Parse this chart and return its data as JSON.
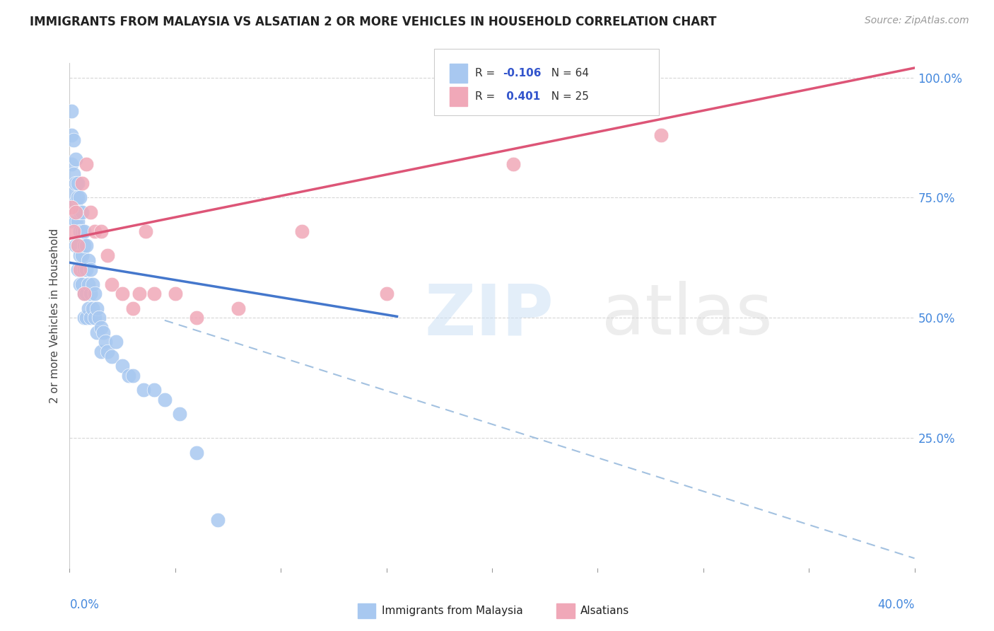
{
  "title": "IMMIGRANTS FROM MALAYSIA VS ALSATIAN 2 OR MORE VEHICLES IN HOUSEHOLD CORRELATION CHART",
  "source": "Source: ZipAtlas.com",
  "yaxis_label": "2 or more Vehicles in Household",
  "legend_label1": "Immigrants from Malaysia",
  "legend_label2": "Alsatians",
  "blue_color": "#a8c8f0",
  "pink_color": "#f0a8b8",
  "blue_line_color": "#4477cc",
  "pink_line_color": "#dd5577",
  "dash_line_color": "#99bbdd",
  "x_min": 0.0,
  "x_max": 0.4,
  "y_min": 0.0,
  "y_max": 1.0,
  "blue_scatter_x": [
    0.001,
    0.001,
    0.001,
    0.002,
    0.002,
    0.002,
    0.002,
    0.003,
    0.003,
    0.003,
    0.003,
    0.003,
    0.004,
    0.004,
    0.004,
    0.004,
    0.004,
    0.005,
    0.005,
    0.005,
    0.005,
    0.005,
    0.006,
    0.006,
    0.006,
    0.006,
    0.007,
    0.007,
    0.007,
    0.007,
    0.007,
    0.008,
    0.008,
    0.008,
    0.008,
    0.009,
    0.009,
    0.009,
    0.01,
    0.01,
    0.01,
    0.011,
    0.011,
    0.012,
    0.012,
    0.013,
    0.013,
    0.014,
    0.015,
    0.015,
    0.016,
    0.017,
    0.018,
    0.02,
    0.022,
    0.025,
    0.028,
    0.03,
    0.035,
    0.04,
    0.045,
    0.052,
    0.06,
    0.07
  ],
  "blue_scatter_y": [
    0.93,
    0.88,
    0.82,
    0.87,
    0.8,
    0.76,
    0.7,
    0.83,
    0.78,
    0.74,
    0.7,
    0.65,
    0.78,
    0.75,
    0.7,
    0.65,
    0.6,
    0.75,
    0.72,
    0.68,
    0.63,
    0.57,
    0.72,
    0.68,
    0.63,
    0.57,
    0.68,
    0.65,
    0.6,
    0.55,
    0.5,
    0.65,
    0.6,
    0.55,
    0.5,
    0.62,
    0.57,
    0.52,
    0.6,
    0.55,
    0.5,
    0.57,
    0.52,
    0.55,
    0.5,
    0.52,
    0.47,
    0.5,
    0.48,
    0.43,
    0.47,
    0.45,
    0.43,
    0.42,
    0.45,
    0.4,
    0.38,
    0.38,
    0.35,
    0.35,
    0.33,
    0.3,
    0.22,
    0.08
  ],
  "pink_scatter_x": [
    0.001,
    0.002,
    0.003,
    0.004,
    0.005,
    0.006,
    0.007,
    0.008,
    0.01,
    0.012,
    0.015,
    0.018,
    0.02,
    0.025,
    0.03,
    0.033,
    0.036,
    0.04,
    0.05,
    0.06,
    0.08,
    0.11,
    0.15,
    0.21,
    0.28
  ],
  "pink_scatter_y": [
    0.73,
    0.68,
    0.72,
    0.65,
    0.6,
    0.78,
    0.55,
    0.82,
    0.72,
    0.68,
    0.68,
    0.63,
    0.57,
    0.55,
    0.52,
    0.55,
    0.68,
    0.55,
    0.55,
    0.5,
    0.52,
    0.68,
    0.55,
    0.82,
    0.88
  ],
  "blue_trend_x0": 0.0,
  "blue_trend_x1": 0.155,
  "blue_trend_y0": 0.615,
  "blue_trend_y1": 0.503,
  "pink_trend_x0": 0.0,
  "pink_trend_x1": 0.4,
  "pink_trend_y0": 0.665,
  "pink_trend_y1": 1.02,
  "dash_trend_x0": 0.045,
  "dash_trend_x1": 0.4,
  "dash_trend_y0": 0.495,
  "dash_trend_y1": 0.0
}
